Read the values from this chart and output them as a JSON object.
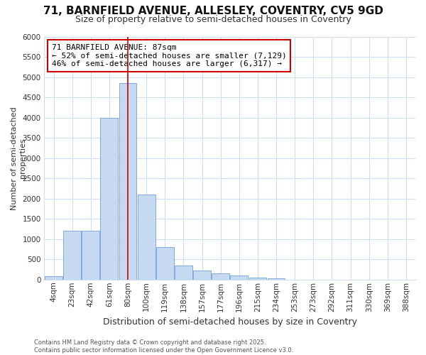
{
  "title": "71, BARNFIELD AVENUE, ALLESLEY, COVENTRY, CV5 9GD",
  "subtitle": "Size of property relative to semi-detached houses in Coventry",
  "xlabel": "Distribution of semi-detached houses by size in Coventry",
  "ylabel": "Number of semi-detached\nproperties",
  "categories": [
    "4sqm",
    "23sqm",
    "42sqm",
    "61sqm",
    "80sqm",
    "100sqm",
    "119sqm",
    "138sqm",
    "157sqm",
    "177sqm",
    "196sqm",
    "215sqm",
    "234sqm",
    "253sqm",
    "273sqm",
    "292sqm",
    "311sqm",
    "330sqm",
    "369sqm",
    "388sqm"
  ],
  "values": [
    75,
    1200,
    1200,
    4000,
    4850,
    2100,
    800,
    350,
    225,
    150,
    100,
    50,
    30,
    0,
    0,
    0,
    0,
    0,
    0,
    0
  ],
  "bar_color": "#c6d9f1",
  "bar_edgecolor": "#7faadc",
  "vline_x": 4.0,
  "vline_color": "#cc0000",
  "annotation_line1": "71 BARNFIELD AVENUE: 87sqm",
  "annotation_line2": "← 52% of semi-detached houses are smaller (7,129)",
  "annotation_line3": "46% of semi-detached houses are larger (6,317) →",
  "annotation_box_edgecolor": "#cc0000",
  "annotation_box_facecolor": "#ffffff",
  "ylim": [
    0,
    6000
  ],
  "yticks": [
    0,
    500,
    1000,
    1500,
    2000,
    2500,
    3000,
    3500,
    4000,
    4500,
    5000,
    5500,
    6000
  ],
  "footnote": "Contains HM Land Registry data © Crown copyright and database right 2025.\nContains public sector information licensed under the Open Government Licence v3.0.",
  "bg_color": "#ffffff",
  "grid_color": "#d0dff0",
  "title_fontsize": 11,
  "subtitle_fontsize": 9,
  "tick_fontsize": 7.5,
  "ylabel_fontsize": 8,
  "xlabel_fontsize": 9
}
